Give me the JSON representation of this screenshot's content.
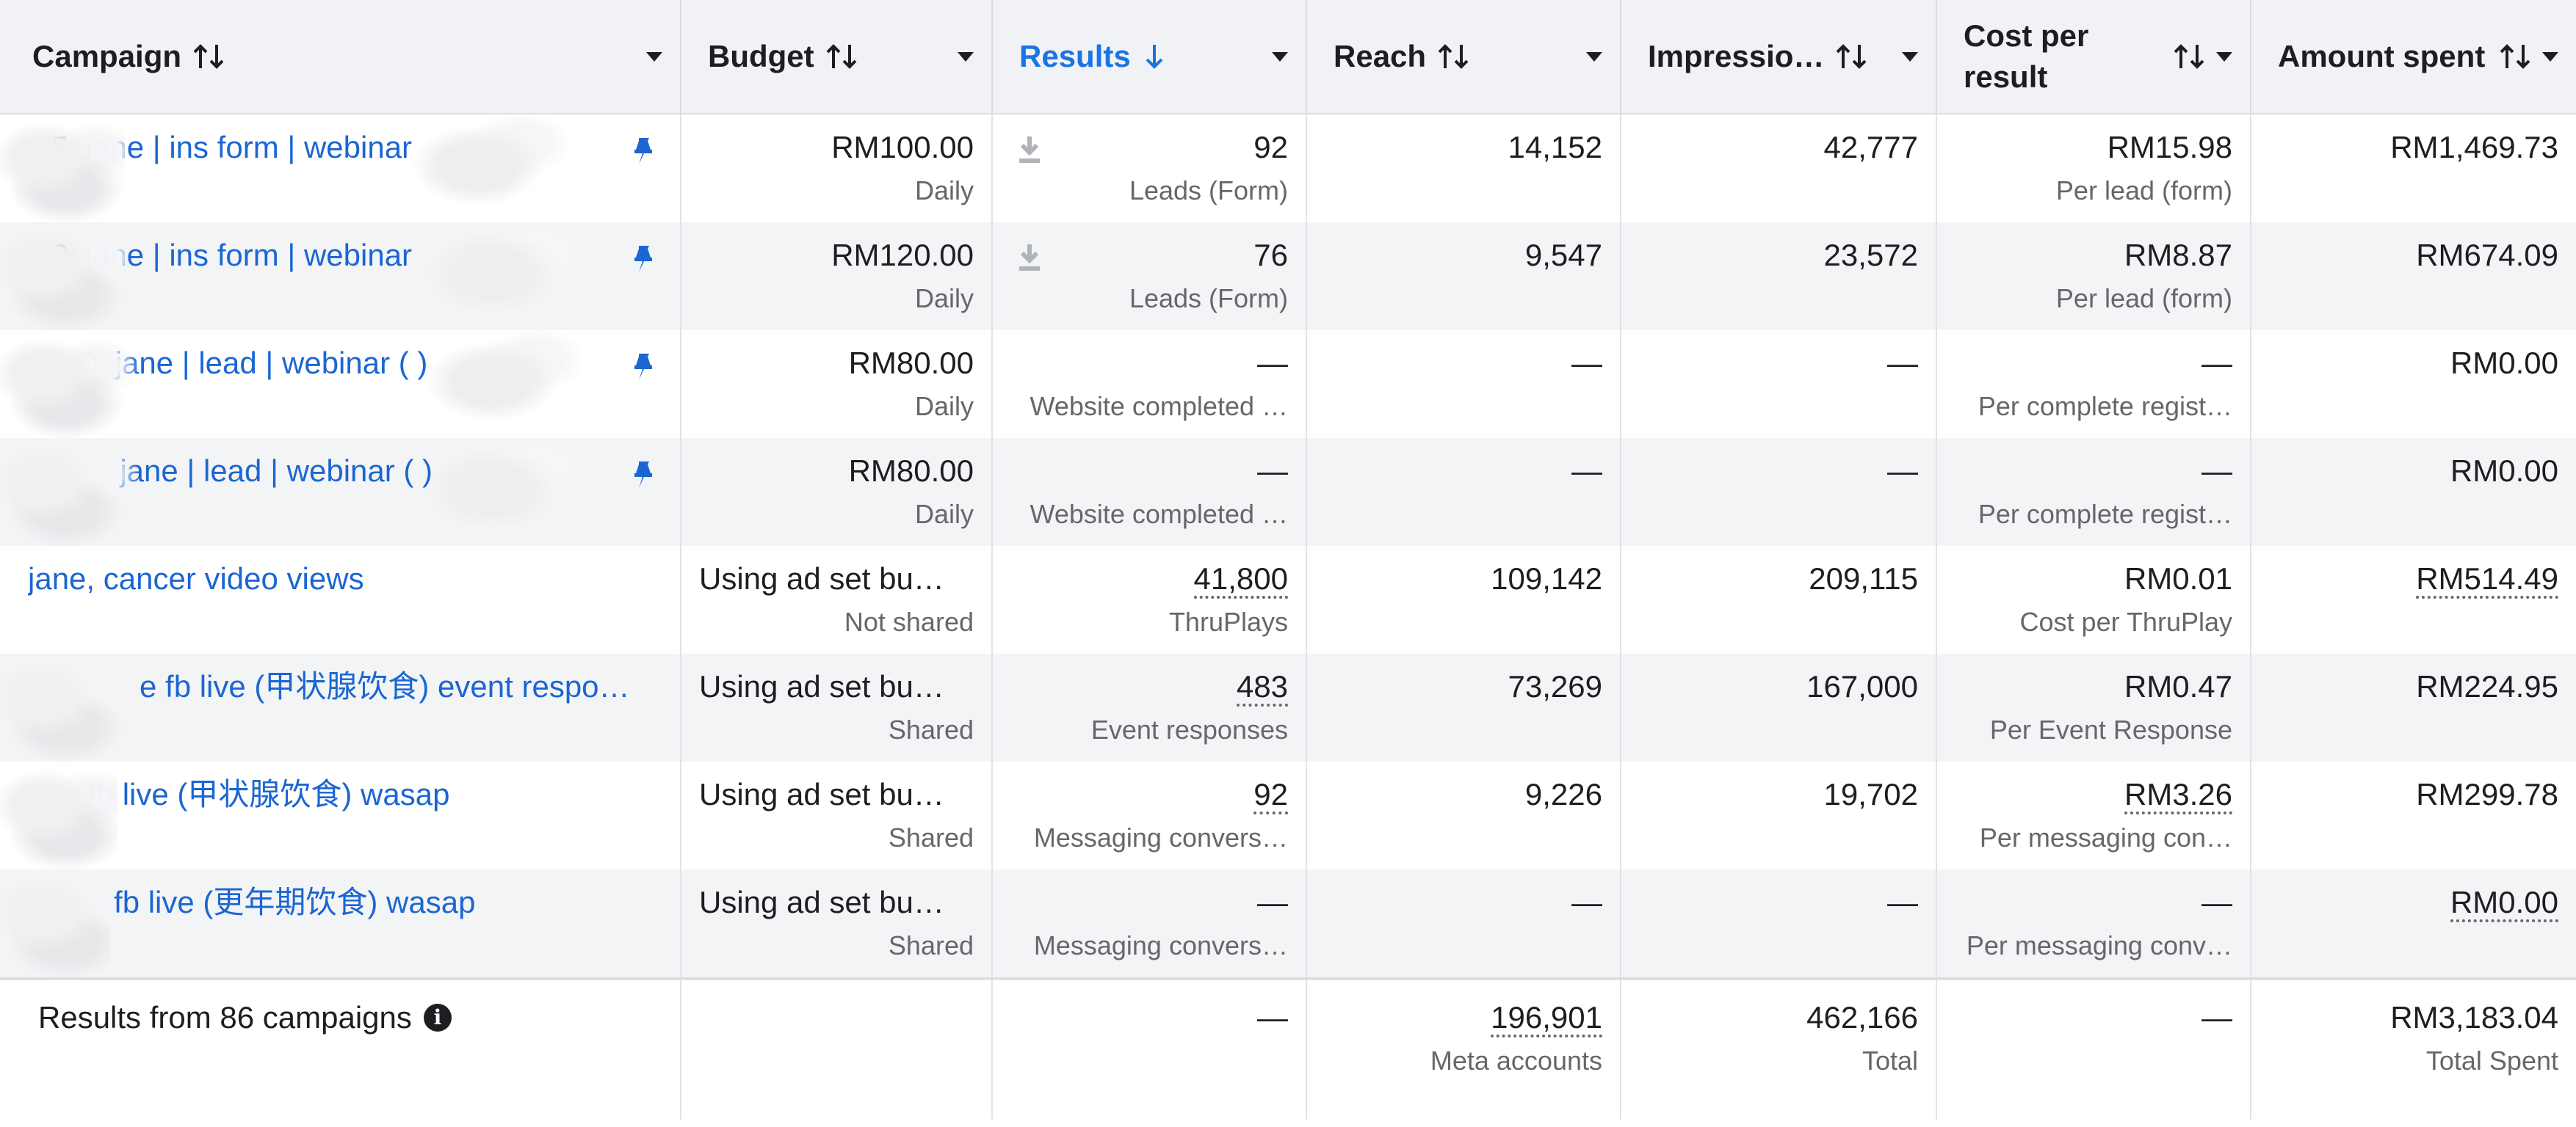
{
  "header": {
    "campaign": "Campaign",
    "budget": "Budget",
    "results": "Results",
    "reach": "Reach",
    "impressions": "Impressio…",
    "cost_per_result": "Cost per result",
    "amount_spent": "Amount spent"
  },
  "rows": [
    {
      "campaign": "5: jane | ins form | webinar",
      "budget": "RM100.00",
      "budget_sub": "Daily",
      "results": "92",
      "results_sub": "Leads (Form)",
      "reach": "14,152",
      "impressions": "42,777",
      "cost": "RM15.98",
      "cost_sub": "Per lead (form)",
      "spent": "RM1,469.73",
      "pinned": true
    },
    {
      "campaign": "3: jane | ins form | webinar",
      "budget": "RM120.00",
      "budget_sub": "Daily",
      "results": "76",
      "results_sub": "Leads (Form)",
      "reach": "9,547",
      "impressions": "23,572",
      "cost": "RM8.87",
      "cost_sub": "Per lead (form)",
      "spent": "RM674.09",
      "pinned": true
    },
    {
      "campaign": "0: jane | lead | webinar (          )",
      "budget": "RM80.00",
      "budget_sub": "Daily",
      "results": "—",
      "results_sub": "Website completed …",
      "reach": "—",
      "impressions": "—",
      "cost": "—",
      "cost_sub": "Per complete regist…",
      "spent": "RM0.00",
      "pinned": true
    },
    {
      "campaign": ". jane | lead | webinar (        )",
      "budget": "RM80.00",
      "budget_sub": "Daily",
      "results": "—",
      "results_sub": "Website completed …",
      "reach": "—",
      "impressions": "—",
      "cost": "—",
      "cost_sub": "Per complete regist…",
      "spent": "RM0.00",
      "pinned": true
    },
    {
      "campaign": "jane, cancer video views",
      "budget": "Using ad set bu…",
      "budget_sub": "Not shared",
      "results": "41,800",
      "results_sub": "ThruPlays",
      "reach": "109,142",
      "impressions": "209,115",
      "cost": "RM0.01",
      "cost_sub": "Cost per ThruPlay",
      "spent": "RM514.49",
      "pinned": false
    },
    {
      "campaign": "e fb live (甲状腺饮食) event respo…",
      "budget": "Using ad set bu…",
      "budget_sub": "Shared",
      "results": "483",
      "results_sub": "Event responses",
      "reach": "73,269",
      "impressions": "167,000",
      "cost": "RM0.47",
      "cost_sub": "Per Event Response",
      "spent": "RM224.95",
      "pinned": false
    },
    {
      "campaign": "fb live (甲状腺饮食) wasap",
      "budget": "Using ad set bu…",
      "budget_sub": "Shared",
      "results": "92",
      "results_sub": "Messaging convers…",
      "reach": "9,226",
      "impressions": "19,702",
      "cost": "RM3.26",
      "cost_sub": "Per messaging con…",
      "spent": "RM299.78",
      "pinned": false
    },
    {
      "campaign": "7 fb live (更年期饮食) wasap",
      "budget": "Using ad set bu…",
      "budget_sub": "Shared",
      "results": "—",
      "results_sub": "Messaging convers…",
      "reach": "—",
      "impressions": "—",
      "cost": "—",
      "cost_sub": "Per messaging conv…",
      "spent": "RM0.00",
      "pinned": false
    }
  ],
  "footer": {
    "label": "Results from 86 campaigns",
    "results": "—",
    "reach": "196,901",
    "reach_sub": "Meta accounts",
    "impressions": "462,166",
    "impressions_sub": "Total",
    "cost": "—",
    "spent": "RM3,183.04",
    "spent_sub": "Total Spent"
  },
  "colors": {
    "link": "#1b66d2",
    "active_header": "#1b74e4",
    "pin": "#1b66d2"
  }
}
